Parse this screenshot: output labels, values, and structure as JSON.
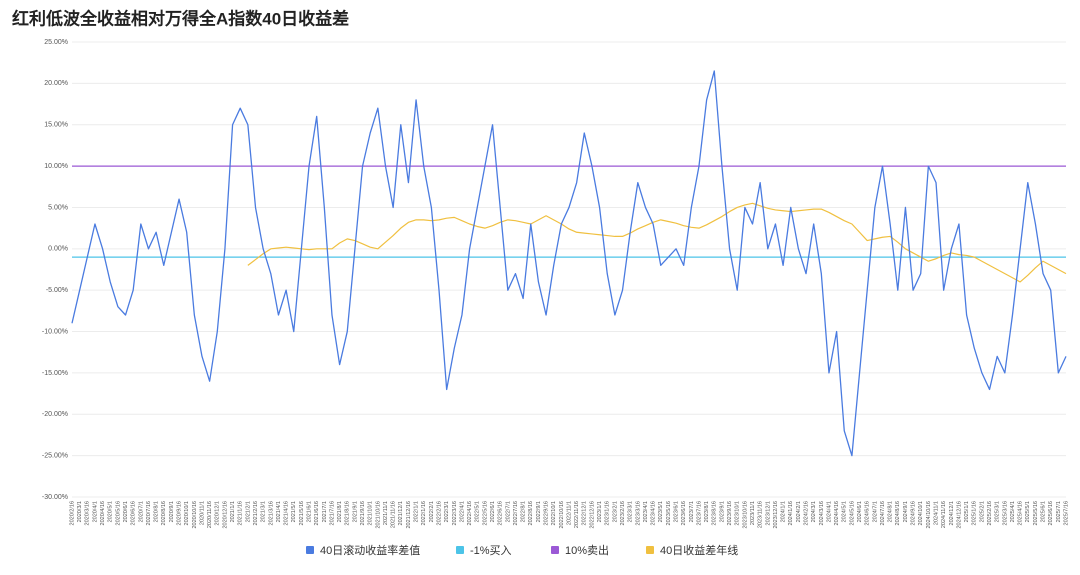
{
  "chart_data": {
    "type": "line",
    "title": "红利低波全收益相对万得全A指数40日收益差",
    "categories": [
      "2020/2/16",
      "2020/3/1",
      "2020/3/16",
      "2020/4/1",
      "2020/4/16",
      "2020/5/1",
      "2020/5/16",
      "2020/6/1",
      "2020/6/16",
      "2020/7/1",
      "2020/7/16",
      "2020/8/1",
      "2020/8/16",
      "2020/9/1",
      "2020/9/16",
      "2020/10/1",
      "2020/10/16",
      "2020/11/1",
      "2020/11/16",
      "2020/12/1",
      "2020/12/16",
      "2021/1/1",
      "2021/1/16",
      "2021/2/1",
      "2021/2/16",
      "2021/3/1",
      "2021/3/16",
      "2021/4/1",
      "2021/4/16",
      "2021/5/1",
      "2021/5/16",
      "2021/6/1",
      "2021/6/16",
      "2021/7/1",
      "2021/7/16",
      "2021/8/1",
      "2021/8/16",
      "2021/9/1",
      "2021/9/16",
      "2021/10/1",
      "2021/10/16",
      "2021/11/1",
      "2021/11/16",
      "2021/12/1",
      "2021/12/16",
      "2022/1/1",
      "2022/1/16",
      "2022/2/1",
      "2022/2/16",
      "2022/3/1",
      "2022/3/16",
      "2022/4/1",
      "2022/4/16",
      "2022/5/1",
      "2022/5/16",
      "2022/6/1",
      "2022/6/16",
      "2022/7/1",
      "2022/7/16",
      "2022/8/1",
      "2022/8/16",
      "2022/9/1",
      "2022/9/16",
      "2022/10/1",
      "2022/10/16",
      "2022/11/1",
      "2022/11/16",
      "2022/12/1",
      "2022/12/16",
      "2023/1/1",
      "2023/1/16",
      "2023/2/1",
      "2023/2/16",
      "2023/3/1",
      "2023/3/16",
      "2023/4/1",
      "2023/4/16",
      "2023/5/1",
      "2023/5/16",
      "2023/6/1",
      "2023/6/16",
      "2023/7/1",
      "2023/7/16",
      "2023/8/1",
      "2023/8/16",
      "2023/9/1",
      "2023/9/16",
      "2023/10/1",
      "2023/10/16",
      "2023/11/1",
      "2023/11/16",
      "2023/12/1",
      "2023/12/16",
      "2024/1/1",
      "2024/1/16",
      "2024/2/1",
      "2024/2/16",
      "2024/3/1",
      "2024/3/16",
      "2024/4/1",
      "2024/4/16",
      "2024/5/1",
      "2024/5/16",
      "2024/6/1",
      "2024/6/16",
      "2024/7/1",
      "2024/7/16",
      "2024/8/1",
      "2024/8/16",
      "2024/9/1",
      "2024/9/16",
      "2024/10/1",
      "2024/10/16",
      "2024/11/1",
      "2024/11/16",
      "2024/12/1",
      "2024/12/16",
      "2025/1/1",
      "2025/1/16",
      "2025/2/1",
      "2025/2/16",
      "2025/3/1",
      "2025/3/16",
      "2025/4/1",
      "2025/4/16",
      "2025/5/1",
      "2025/5/16",
      "2025/6/1",
      "2025/6/16",
      "2025/7/1",
      "2025/7/16"
    ],
    "series": [
      {
        "name": "40日滚动收益率差值",
        "color": "#4a7be0",
        "values": [
          -9,
          -5,
          -1,
          3,
          0,
          -4,
          -7,
          -8,
          -5,
          3,
          0,
          2,
          -2,
          2,
          6,
          2,
          -8,
          -13,
          -16,
          -10,
          0,
          15,
          17,
          15,
          5,
          0,
          -3,
          -8,
          -5,
          -10,
          0,
          10,
          16,
          5,
          -8,
          -14,
          -10,
          0,
          10,
          14,
          17,
          10,
          5,
          15,
          8,
          18,
          10,
          5,
          -5,
          -17,
          -12,
          -8,
          0,
          5,
          10,
          15,
          5,
          -5,
          -3,
          -6,
          3,
          -4,
          -8,
          -2,
          3,
          5,
          8,
          14,
          10,
          5,
          -3,
          -8,
          -5,
          2,
          8,
          5,
          3,
          -2,
          -1,
          0,
          -2,
          5,
          10,
          18,
          21.5,
          10,
          0,
          -5,
          5,
          3,
          8,
          0,
          3,
          -2,
          5,
          0,
          -3,
          3,
          -3,
          -15,
          -10,
          -22,
          -25,
          -15,
          -5,
          5,
          10,
          3,
          -5,
          5,
          -5,
          -3,
          10,
          8,
          -5,
          0,
          3,
          -8,
          -12,
          -15,
          -17,
          -13,
          -15,
          -8,
          0,
          8,
          3,
          -3,
          -5,
          -15,
          -13
        ]
      },
      {
        "name": "-1%买入",
        "color": "#4cc4e8",
        "values": [
          -1,
          -1,
          -1,
          -1,
          -1,
          -1,
          -1,
          -1,
          -1,
          -1,
          -1,
          -1,
          -1,
          -1,
          -1,
          -1,
          -1,
          -1,
          -1,
          -1,
          -1,
          -1,
          -1,
          -1,
          -1,
          -1,
          -1,
          -1,
          -1,
          -1,
          -1,
          -1,
          -1,
          -1,
          -1,
          -1,
          -1,
          -1,
          -1,
          -1,
          -1,
          -1,
          -1,
          -1,
          -1,
          -1,
          -1,
          -1,
          -1,
          -1,
          -1,
          -1,
          -1,
          -1,
          -1,
          -1,
          -1,
          -1,
          -1,
          -1,
          -1,
          -1,
          -1,
          -1,
          -1,
          -1,
          -1,
          -1,
          -1,
          -1,
          -1,
          -1,
          -1,
          -1,
          -1,
          -1,
          -1,
          -1,
          -1,
          -1,
          -1,
          -1,
          -1,
          -1,
          -1,
          -1,
          -1,
          -1,
          -1,
          -1,
          -1,
          -1,
          -1,
          -1,
          -1,
          -1,
          -1,
          -1,
          -1,
          -1,
          -1,
          -1,
          -1,
          -1,
          -1,
          -1,
          -1,
          -1,
          -1,
          -1,
          -1,
          -1,
          -1,
          -1,
          -1,
          -1,
          -1,
          -1,
          -1,
          -1,
          -1,
          -1,
          -1,
          -1,
          -1,
          -1,
          -1,
          -1,
          -1,
          -1,
          -1
        ]
      },
      {
        "name": "10%卖出",
        "color": "#9b59d6",
        "values": [
          10,
          10,
          10,
          10,
          10,
          10,
          10,
          10,
          10,
          10,
          10,
          10,
          10,
          10,
          10,
          10,
          10,
          10,
          10,
          10,
          10,
          10,
          10,
          10,
          10,
          10,
          10,
          10,
          10,
          10,
          10,
          10,
          10,
          10,
          10,
          10,
          10,
          10,
          10,
          10,
          10,
          10,
          10,
          10,
          10,
          10,
          10,
          10,
          10,
          10,
          10,
          10,
          10,
          10,
          10,
          10,
          10,
          10,
          10,
          10,
          10,
          10,
          10,
          10,
          10,
          10,
          10,
          10,
          10,
          10,
          10,
          10,
          10,
          10,
          10,
          10,
          10,
          10,
          10,
          10,
          10,
          10,
          10,
          10,
          10,
          10,
          10,
          10,
          10,
          10,
          10,
          10,
          10,
          10,
          10,
          10,
          10,
          10,
          10,
          10,
          10,
          10,
          10,
          10,
          10,
          10,
          10,
          10,
          10,
          10,
          10,
          10,
          10,
          10,
          10,
          10,
          10,
          10,
          10,
          10,
          10,
          10,
          10,
          10,
          10,
          10,
          10,
          10,
          10,
          10,
          10
        ]
      },
      {
        "name": "40日收益差年线",
        "color": "#f0c040",
        "values": [
          null,
          null,
          null,
          null,
          null,
          null,
          null,
          null,
          null,
          null,
          null,
          null,
          null,
          null,
          null,
          null,
          null,
          null,
          null,
          null,
          null,
          null,
          null,
          -2,
          -1.3,
          -0.6,
          0,
          0.1,
          0.2,
          0.1,
          0,
          -0.1,
          0,
          0,
          0,
          0.7,
          1.2,
          1,
          0.6,
          0.2,
          0,
          0.8,
          1.6,
          2.5,
          3.2,
          3.5,
          3.5,
          3.4,
          3.5,
          3.7,
          3.8,
          3.4,
          3,
          2.7,
          2.5,
          2.8,
          3.2,
          3.5,
          3.4,
          3.2,
          3,
          3.5,
          4,
          3.5,
          3,
          2.4,
          2,
          1.9,
          1.8,
          1.7,
          1.6,
          1.5,
          1.5,
          1.9,
          2.4,
          2.8,
          3.2,
          3.5,
          3.3,
          3.1,
          2.8,
          2.6,
          2.5,
          2.9,
          3.4,
          3.9,
          4.5,
          5,
          5.3,
          5.5,
          5.2,
          4.9,
          4.7,
          4.6,
          4.5,
          4.6,
          4.7,
          4.8,
          4.8,
          4.4,
          3.9,
          3.4,
          3,
          2,
          1,
          1.2,
          1.4,
          1.5,
          0.8,
          0,
          -0.5,
          -1,
          -1.5,
          -1.2,
          -0.8,
          -0.5,
          -0.7,
          -0.8,
          -1,
          -1.5,
          -2,
          -2.5,
          -3,
          -3.5,
          -4,
          -3.2,
          -2.3,
          -1.5,
          -2,
          -2.5,
          -3
        ]
      }
    ],
    "ylim": [
      -30,
      25
    ],
    "yticks": [
      {
        "value": -30,
        "label": "-30.00%"
      },
      {
        "value": -25,
        "label": "-25.00%"
      },
      {
        "value": -20,
        "label": "-20.00%"
      },
      {
        "value": -15,
        "label": "-15.00%"
      },
      {
        "value": -10,
        "label": "-10.00%"
      },
      {
        "value": -5,
        "label": "-5.00%"
      },
      {
        "value": 0,
        "label": "0.00%"
      },
      {
        "value": 5,
        "label": "5.00%"
      },
      {
        "value": 10,
        "label": "10.00%"
      },
      {
        "value": 15,
        "label": "15.00%"
      },
      {
        "value": 20,
        "label": "20.00%"
      },
      {
        "value": 25,
        "label": "25.00%"
      }
    ],
    "grid": true,
    "legend": "bottom"
  }
}
